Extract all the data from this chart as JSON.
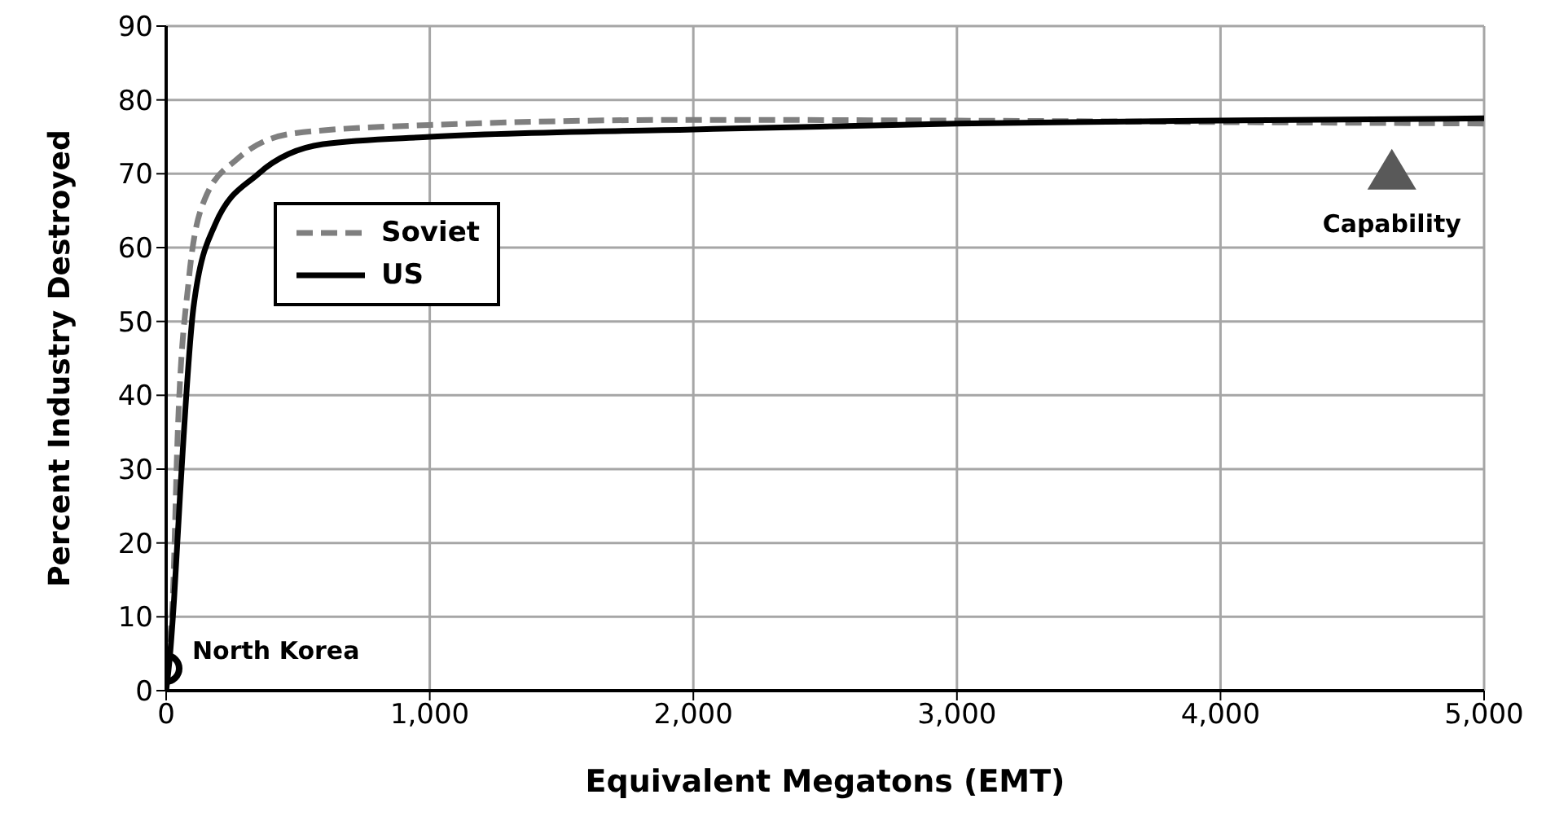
{
  "chart_data": {
    "type": "line",
    "xlabel": "Equivalent Megatons (EMT)",
    "ylabel": "Percent Industry Destroyed",
    "xlim": [
      0,
      5000
    ],
    "xticks": [
      0,
      {
        "value": 1000,
        "label": "1,000"
      },
      {
        "value": 2000,
        "label": "2,000"
      },
      {
        "value": 3000,
        "label": "3,000"
      },
      {
        "value": 4000,
        "label": "4,000"
      },
      {
        "value": 5000,
        "label": "5,000"
      }
    ],
    "ylim": [
      0,
      90
    ],
    "yticks": [
      0,
      10,
      20,
      30,
      40,
      50,
      60,
      70,
      80,
      90
    ],
    "grid": true,
    "legend": "top left",
    "series": [
      {
        "name": "Soviet",
        "color": "#7f7f7f",
        "line_style": "dashed",
        "marker": "none",
        "x": [
          0,
          10,
          25,
          43,
          86,
          147,
          270,
          490,
          1000,
          2000,
          3000,
          4000,
          5000
        ],
        "values": [
          0,
          5,
          12.4,
          34,
          55.7,
          66.6,
          72,
          75.5,
          76.6,
          77.3,
          77.2,
          77,
          76.8
        ]
      },
      {
        "name": "US",
        "color": "#000000",
        "line_style": "solid",
        "marker": "none",
        "x": [
          0,
          15,
          30,
          53,
          104,
          184,
          350,
          595,
          1000,
          2000,
          3000,
          4000,
          5000
        ],
        "values": [
          0,
          5,
          12.4,
          26.7,
          52,
          63,
          70,
          74,
          75,
          76,
          76.8,
          77.2,
          77.5
        ]
      },
      {
        "type": "scatter",
        "color": "#000000",
        "marker": "circle",
        "x": [
          0
        ],
        "values": [
          3
        ]
      },
      {
        "type": "scatter",
        "color": "#595959",
        "marker": "triangle",
        "x": [
          4650
        ],
        "values": [
          70.5
        ]
      }
    ],
    "annotations": [
      {
        "text": "North Korea",
        "x": 0,
        "y": 3
      },
      {
        "text": "Capability",
        "x": 4650,
        "y": 70.5
      }
    ]
  }
}
